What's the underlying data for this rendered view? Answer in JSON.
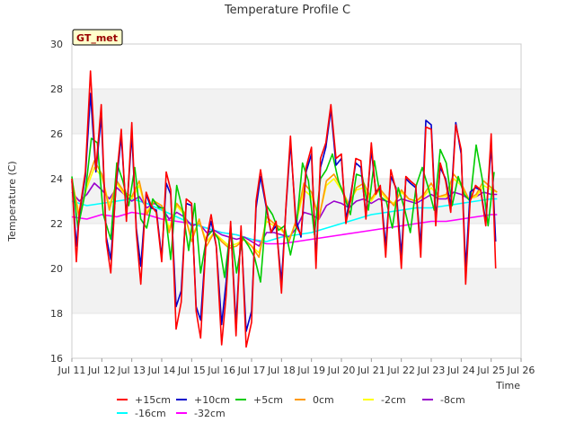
{
  "chart_data": {
    "type": "line",
    "title": "Temperature Profile C",
    "xlabel": "Time",
    "ylabel": "Temperature (C)",
    "ylim": [
      16,
      30
    ],
    "xlim": [
      11,
      26
    ],
    "yticks": [
      16,
      18,
      20,
      22,
      24,
      26,
      28,
      30
    ],
    "xticks": [
      11,
      12,
      13,
      14,
      15,
      16,
      17,
      18,
      19,
      20,
      21,
      22,
      23,
      24,
      25,
      26
    ],
    "xtick_labels": [
      "Jul 11",
      "Jul 12",
      "Jul 13",
      "Jul 14",
      "Jul 15",
      "Jul 16",
      "Jul 17",
      "Jul 18",
      "Jul 19",
      "Jul 20",
      "Jul 21",
      "Jul 22",
      "Jul 23",
      "Jul 24",
      "Jul 25",
      "Jul 26"
    ],
    "grid": "horizontal-bands",
    "annotation": "GT_met",
    "legend_position": "bottom",
    "series": [
      {
        "name": "+15cm",
        "color": "#ff0000",
        "x": [
          11.0,
          11.15,
          11.25,
          11.45,
          11.62,
          11.8,
          11.98,
          12.15,
          12.3,
          12.48,
          12.65,
          12.82,
          13.0,
          13.15,
          13.3,
          13.48,
          13.65,
          13.82,
          14.0,
          14.15,
          14.3,
          14.48,
          14.65,
          14.82,
          15.0,
          15.15,
          15.3,
          15.48,
          15.65,
          15.82,
          16.0,
          16.15,
          16.3,
          16.48,
          16.65,
          16.82,
          17.0,
          17.15,
          17.3,
          17.48,
          17.65,
          17.82,
          18.0,
          18.15,
          18.3,
          18.48,
          18.65,
          18.82,
          19.0,
          19.15,
          19.3,
          19.48,
          19.65,
          19.82,
          20.0,
          20.15,
          20.3,
          20.48,
          20.65,
          20.82,
          21.0,
          21.15,
          21.3,
          21.48,
          21.65,
          21.82,
          22.0,
          22.15,
          22.3,
          22.48,
          22.65,
          22.82,
          23.0,
          23.15,
          23.3,
          23.48,
          23.65,
          23.82,
          24.0,
          24.15,
          24.3,
          24.48,
          24.65,
          24.82,
          25.0,
          25.15
        ],
        "y": [
          24.0,
          20.3,
          22.5,
          24.3,
          28.8,
          24.4,
          27.3,
          21.2,
          19.8,
          23.9,
          26.2,
          22.1,
          26.5,
          21.6,
          19.3,
          23.4,
          22.8,
          22.5,
          20.3,
          24.3,
          23.5,
          17.3,
          18.5,
          23.1,
          22.9,
          18.1,
          16.9,
          21.2,
          22.4,
          21.0,
          16.6,
          18.8,
          22.1,
          17.0,
          21.9,
          16.5,
          17.6,
          23.0,
          24.4,
          22.9,
          21.6,
          22.1,
          18.9,
          22.8,
          25.9,
          21.9,
          21.5,
          24.5,
          25.4,
          20.0,
          24.9,
          25.6,
          27.3,
          24.9,
          25.1,
          22.0,
          23.0,
          24.9,
          24.8,
          22.2,
          25.6,
          23.3,
          23.7,
          20.5,
          24.4,
          23.5,
          20.0,
          24.1,
          23.9,
          23.7,
          20.5,
          26.3,
          26.2,
          21.9,
          24.7,
          23.9,
          22.5,
          26.4,
          25.3,
          19.3,
          23.0,
          23.7,
          23.5,
          21.9,
          26.0,
          20.0
        ]
      },
      {
        "name": "+10cm",
        "color": "#0000cc",
        "x": [
          11.0,
          11.15,
          11.25,
          11.45,
          11.62,
          11.8,
          11.98,
          12.15,
          12.3,
          12.48,
          12.65,
          12.82,
          13.0,
          13.15,
          13.3,
          13.48,
          13.65,
          13.82,
          14.0,
          14.15,
          14.3,
          14.48,
          14.65,
          14.82,
          15.0,
          15.15,
          15.3,
          15.48,
          15.65,
          15.82,
          16.0,
          16.15,
          16.3,
          16.48,
          16.65,
          16.82,
          17.0,
          17.15,
          17.3,
          17.48,
          17.65,
          17.82,
          18.0,
          18.15,
          18.3,
          18.48,
          18.65,
          18.82,
          19.0,
          19.15,
          19.3,
          19.48,
          19.65,
          19.82,
          20.0,
          20.15,
          20.3,
          20.48,
          20.65,
          20.82,
          21.0,
          21.15,
          21.3,
          21.48,
          21.65,
          21.82,
          22.0,
          22.15,
          22.3,
          22.48,
          22.65,
          22.82,
          23.0,
          23.15,
          23.3,
          23.48,
          23.65,
          23.82,
          24.0,
          24.15,
          24.3,
          24.48,
          24.65,
          24.82,
          25.0,
          25.15
        ],
        "y": [
          23.9,
          21.0,
          22.4,
          24.1,
          27.8,
          24.3,
          26.8,
          21.4,
          20.4,
          23.7,
          25.9,
          22.3,
          26.0,
          21.8,
          20.1,
          23.3,
          22.7,
          22.6,
          20.5,
          23.8,
          23.3,
          18.3,
          19.0,
          22.9,
          22.8,
          18.3,
          17.7,
          21.2,
          22.1,
          21.0,
          17.5,
          19.4,
          21.9,
          17.5,
          21.7,
          17.2,
          18.1,
          22.7,
          24.1,
          22.8,
          21.6,
          21.9,
          19.4,
          22.7,
          25.6,
          22.2,
          21.4,
          24.3,
          25.1,
          20.4,
          24.5,
          25.4,
          27.1,
          24.6,
          24.9,
          22.2,
          23.2,
          24.7,
          24.5,
          22.4,
          25.3,
          23.4,
          23.6,
          21.0,
          24.1,
          23.6,
          20.6,
          24.0,
          23.8,
          23.6,
          21.0,
          26.6,
          26.4,
          22.2,
          24.5,
          24.0,
          22.8,
          26.5,
          25.1,
          20.0,
          23.4,
          23.6,
          23.5,
          22.1,
          25.5,
          21.2
        ]
      },
      {
        "name": "+5cm",
        "color": "#00cc00",
        "x": [
          11.0,
          11.2,
          11.45,
          11.65,
          11.85,
          12.05,
          12.3,
          12.5,
          12.7,
          12.9,
          13.1,
          13.3,
          13.5,
          13.7,
          13.9,
          14.1,
          14.3,
          14.5,
          14.7,
          14.9,
          15.1,
          15.3,
          15.5,
          15.7,
          15.9,
          16.1,
          16.3,
          16.5,
          16.7,
          16.9,
          17.1,
          17.3,
          17.5,
          17.7,
          17.9,
          18.1,
          18.3,
          18.5,
          18.7,
          18.9,
          19.1,
          19.3,
          19.5,
          19.7,
          19.9,
          20.1,
          20.3,
          20.5,
          20.7,
          20.9,
          21.1,
          21.3,
          21.5,
          21.7,
          21.9,
          22.1,
          22.3,
          22.5,
          22.7,
          22.9,
          23.1,
          23.3,
          23.5,
          23.7,
          23.9,
          24.1,
          24.3,
          24.5,
          24.7,
          24.9,
          25.1
        ],
        "y": [
          24.1,
          21.8,
          23.4,
          25.8,
          25.6,
          22.4,
          21.3,
          24.7,
          23.9,
          22.8,
          24.5,
          22.2,
          21.8,
          23.1,
          22.7,
          22.7,
          20.4,
          23.7,
          22.6,
          20.8,
          22.9,
          19.8,
          21.4,
          21.7,
          21.3,
          19.6,
          21.8,
          19.8,
          21.4,
          21.0,
          20.5,
          19.4,
          22.8,
          22.4,
          21.7,
          21.9,
          20.6,
          21.9,
          24.7,
          23.9,
          21.5,
          24.0,
          24.4,
          25.1,
          23.9,
          23.2,
          22.4,
          24.2,
          24.1,
          22.6,
          24.8,
          23.2,
          23.0,
          21.8,
          23.6,
          22.7,
          21.6,
          23.7,
          24.5,
          23.6,
          22.6,
          25.3,
          24.7,
          22.8,
          24.1,
          23.3,
          23.0,
          25.5,
          24.0,
          21.9,
          24.3
        ]
      },
      {
        "name": "0cm",
        "color": "#ff9900",
        "x": [
          11.0,
          11.25,
          11.5,
          11.75,
          12.0,
          12.25,
          12.5,
          12.75,
          13.0,
          13.25,
          13.5,
          13.75,
          14.0,
          14.25,
          14.5,
          14.75,
          15.0,
          15.25,
          15.5,
          15.75,
          16.0,
          16.25,
          16.5,
          16.75,
          17.0,
          17.25,
          17.5,
          17.75,
          18.0,
          18.25,
          18.5,
          18.75,
          19.0,
          19.25,
          19.5,
          19.75,
          20.0,
          20.25,
          20.5,
          20.75,
          21.0,
          21.25,
          21.5,
          21.75,
          22.0,
          22.25,
          22.5,
          22.75,
          23.0,
          23.25,
          23.5,
          23.75,
          24.0,
          24.25,
          24.5,
          24.75,
          25.0,
          25.2
        ],
        "y": [
          24.0,
          22.2,
          23.8,
          24.8,
          24.2,
          22.6,
          23.9,
          23.4,
          23.2,
          23.9,
          22.4,
          23.0,
          22.8,
          21.6,
          22.9,
          22.5,
          21.2,
          22.2,
          21.0,
          21.6,
          21.2,
          20.9,
          21.0,
          21.3,
          21.0,
          20.5,
          22.3,
          22.0,
          21.8,
          21.2,
          22.2,
          23.8,
          23.4,
          22.2,
          23.9,
          24.2,
          23.6,
          22.8,
          23.6,
          23.8,
          23.1,
          23.6,
          23.2,
          22.8,
          23.5,
          23.1,
          23.0,
          23.3,
          23.8,
          23.2,
          23.3,
          24.2,
          23.8,
          23.1,
          23.3,
          23.9,
          23.6,
          23.4
        ]
      },
      {
        "name": "-2cm",
        "color": "#ffff00",
        "x": [
          11.0,
          11.25,
          11.5,
          11.75,
          12.0,
          12.25,
          12.5,
          12.75,
          13.0,
          13.25,
          13.5,
          13.75,
          14.0,
          14.25,
          14.5,
          14.75,
          15.0,
          15.25,
          15.5,
          15.75,
          16.0,
          16.25,
          16.5,
          16.75,
          17.0,
          17.25,
          17.5,
          17.75,
          18.0,
          18.25,
          18.5,
          18.75,
          19.0,
          19.25,
          19.5,
          19.75,
          20.0,
          20.25,
          20.5,
          20.75,
          21.0,
          21.25,
          21.5,
          21.75,
          22.0,
          22.25,
          22.5,
          22.75,
          23.0,
          23.25,
          23.5,
          23.75,
          24.0,
          24.25,
          24.5,
          24.75,
          25.0,
          25.2
        ],
        "y": [
          23.9,
          22.4,
          23.6,
          24.5,
          24.1,
          22.8,
          23.8,
          23.3,
          23.1,
          23.7,
          22.5,
          23.0,
          22.8,
          21.8,
          22.8,
          22.4,
          21.4,
          22.1,
          21.2,
          21.6,
          21.3,
          21.0,
          21.1,
          21.3,
          21.0,
          20.7,
          22.1,
          21.9,
          21.7,
          21.3,
          22.1,
          23.5,
          23.2,
          22.3,
          23.7,
          24.0,
          23.5,
          22.9,
          23.5,
          23.6,
          23.0,
          23.5,
          23.1,
          22.9,
          23.4,
          23.1,
          23.0,
          23.2,
          23.6,
          23.2,
          23.2,
          24.0,
          23.7,
          23.1,
          23.2,
          23.7,
          23.5,
          23.4
        ]
      },
      {
        "name": "-8cm",
        "color": "#9900cc",
        "x": [
          11.0,
          11.25,
          11.5,
          11.75,
          12.0,
          12.25,
          12.5,
          12.75,
          13.0,
          13.25,
          13.5,
          13.75,
          14.0,
          14.25,
          14.5,
          14.75,
          15.0,
          15.25,
          15.5,
          15.75,
          16.0,
          16.25,
          16.5,
          16.75,
          17.0,
          17.25,
          17.5,
          17.75,
          18.0,
          18.25,
          18.5,
          18.75,
          19.0,
          19.25,
          19.5,
          19.75,
          20.0,
          20.25,
          20.5,
          20.75,
          21.0,
          21.25,
          21.5,
          21.75,
          22.0,
          22.25,
          22.5,
          22.75,
          23.0,
          23.25,
          23.5,
          23.75,
          24.0,
          24.25,
          24.5,
          24.75,
          25.0,
          25.2
        ],
        "y": [
          23.4,
          23.0,
          23.3,
          23.8,
          23.5,
          23.1,
          23.6,
          23.3,
          23.0,
          23.2,
          22.7,
          22.9,
          22.7,
          22.2,
          22.5,
          22.3,
          21.9,
          22.0,
          21.6,
          21.7,
          21.5,
          21.4,
          21.3,
          21.4,
          21.2,
          21.0,
          21.6,
          21.6,
          21.5,
          21.4,
          21.8,
          22.5,
          22.4,
          22.2,
          22.8,
          23.0,
          22.9,
          22.7,
          23.0,
          23.1,
          22.9,
          23.1,
          23.0,
          22.9,
          23.1,
          23.0,
          22.9,
          23.1,
          23.3,
          23.1,
          23.1,
          23.4,
          23.3,
          23.1,
          23.2,
          23.4,
          23.3,
          23.3
        ]
      },
      {
        "name": "-16cm",
        "color": "#00ffff",
        "x": [
          11.0,
          11.5,
          12.0,
          12.5,
          13.0,
          13.5,
          14.0,
          14.5,
          15.0,
          15.5,
          16.0,
          16.5,
          17.0,
          17.5,
          18.0,
          18.5,
          19.0,
          19.5,
          20.0,
          20.5,
          21.0,
          21.5,
          22.0,
          22.5,
          23.0,
          23.5,
          24.0,
          24.5,
          25.0,
          25.2
        ],
        "y": [
          23.0,
          22.8,
          22.9,
          23.0,
          23.1,
          22.9,
          22.6,
          22.3,
          22.0,
          21.8,
          21.6,
          21.5,
          21.3,
          21.2,
          21.4,
          21.5,
          21.6,
          21.8,
          22.0,
          22.2,
          22.4,
          22.5,
          22.6,
          22.7,
          22.7,
          22.8,
          22.9,
          23.0,
          23.1,
          23.1
        ]
      },
      {
        "name": "-32cm",
        "color": "#ff00ff",
        "x": [
          11.0,
          11.5,
          12.0,
          12.5,
          13.0,
          13.5,
          14.0,
          14.5,
          15.0,
          15.5,
          16.0,
          16.5,
          17.0,
          17.5,
          18.0,
          18.5,
          19.0,
          19.5,
          20.0,
          20.5,
          21.0,
          21.5,
          22.0,
          22.5,
          23.0,
          23.5,
          24.0,
          24.5,
          25.0,
          25.2
        ],
        "y": [
          22.3,
          22.2,
          22.4,
          22.3,
          22.5,
          22.4,
          22.2,
          22.1,
          22.0,
          21.8,
          21.6,
          21.5,
          21.3,
          21.1,
          21.1,
          21.2,
          21.3,
          21.4,
          21.5,
          21.6,
          21.7,
          21.8,
          21.9,
          22.0,
          22.1,
          22.1,
          22.2,
          22.3,
          22.4,
          22.4
        ]
      }
    ]
  }
}
